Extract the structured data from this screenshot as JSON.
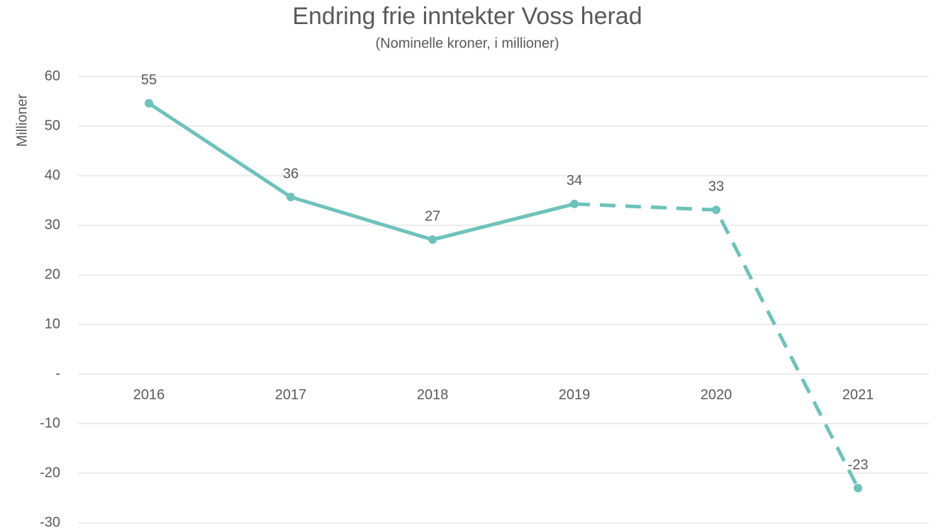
{
  "chart_data": {
    "type": "line",
    "title": "Endring frie inntekter Voss herad",
    "subtitle": "(Nominelle  kroner,  i millioner)",
    "y_label": "Millioner",
    "categories": [
      "2016",
      "2017",
      "2018",
      "2019",
      "2020",
      "2021"
    ],
    "series": [
      {
        "name": "Endring frie inntekter",
        "color": "#6cc3bb",
        "values": [
          54.6,
          35.7,
          27.1,
          34.3,
          33.1,
          -23
        ],
        "value_labels": [
          "55",
          "36",
          "27",
          "34",
          "33",
          "-23"
        ],
        "dashed_from": "2019"
      }
    ],
    "ylim": [
      -30,
      60
    ],
    "yticks": [
      -30,
      -20,
      -10,
      {
        "value": 0,
        "label": "-"
      },
      10,
      20,
      30,
      40,
      50,
      60
    ],
    "grid": true
  }
}
